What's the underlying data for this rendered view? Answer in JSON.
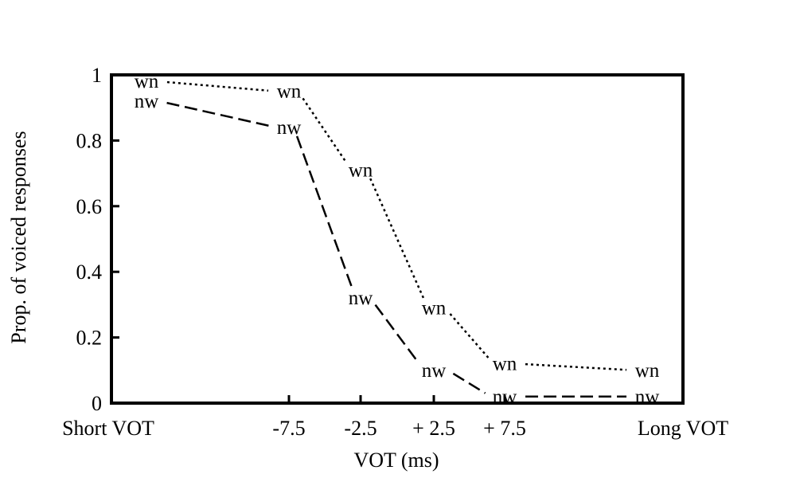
{
  "chart_data": {
    "type": "line",
    "xlabel": "VOT (ms)",
    "ylabel": "Prop. of voiced responses",
    "ylim": [
      0,
      1
    ],
    "y_ticks": [
      "0",
      "0.2",
      "0.4",
      "0.6",
      "0.8",
      "1"
    ],
    "categories": [
      "Short VOT",
      "-7.5",
      "-2.5",
      "+ 2.5",
      "+ 7.5",
      "Long VOT"
    ],
    "series": [
      {
        "name": "wn",
        "marker_label": "wn",
        "line_style": "dotted",
        "values": [
          0.98,
          0.95,
          0.71,
          0.29,
          0.12,
          0.1
        ]
      },
      {
        "name": "nw",
        "marker_label": "nw",
        "line_style": "dashed",
        "values": [
          0.92,
          0.84,
          0.32,
          0.1,
          0.02,
          0.02
        ]
      }
    ],
    "grid": false,
    "legend": "none",
    "colors": {
      "line": "#000000",
      "background": "#ffffff"
    }
  }
}
